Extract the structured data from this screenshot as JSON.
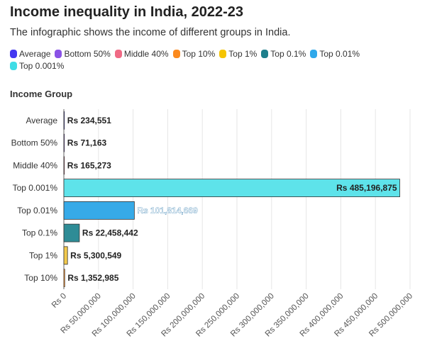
{
  "title": "Income inequality in India, 2022-23",
  "subtitle": "The infographic shows the income of different groups in India.",
  "legend": [
    {
      "label": "Average",
      "color": "#4338f0"
    },
    {
      "label": "Bottom 50%",
      "color": "#8a52e6"
    },
    {
      "label": "Middle 40%",
      "color": "#f06a85"
    },
    {
      "label": "Top 10%",
      "color": "#fb8a1e"
    },
    {
      "label": "Top 1%",
      "color": "#f5c400"
    },
    {
      "label": "Top 0.1%",
      "color": "#1e7f8c"
    },
    {
      "label": "Top 0.01%",
      "color": "#2fa8ea"
    },
    {
      "label": "Top 0.001%",
      "color": "#3fdde6"
    }
  ],
  "chart_data": {
    "type": "bar",
    "orientation": "horizontal",
    "ylabel": "Income Group",
    "xlim": [
      0,
      500000000
    ],
    "x_ticks": [
      0,
      50000000,
      100000000,
      150000000,
      200000000,
      250000000,
      300000000,
      350000000,
      400000000,
      450000000,
      500000000
    ],
    "x_tick_labels": [
      "Rs 0",
      "Rs 50,000,000",
      "Rs 100,000,000",
      "Rs 150,000,000",
      "Rs 200,000,000",
      "Rs 250,000,000",
      "Rs 300,000,000",
      "Rs 350,000,000",
      "Rs 400,000,000",
      "Rs 450,000,000",
      "Rs 500,000,000"
    ],
    "grid": true,
    "legend_position": "top",
    "bars": [
      {
        "category": "Average",
        "value": 234551,
        "label": "Rs 234,551",
        "color": "#4338f0"
      },
      {
        "category": "Bottom 50%",
        "value": 71163,
        "label": "Rs 71,163",
        "color": "#8a52e6"
      },
      {
        "category": "Middle 40%",
        "value": 165273,
        "label": "Rs 165,273",
        "color": "#f06a85"
      },
      {
        "category": "Top 0.001%",
        "value": 485196875,
        "label": "Rs 485,196,875",
        "color": "#5ee3ea"
      },
      {
        "category": "Top 0.01%",
        "value": 101814669,
        "label": "Rs 101,814,669",
        "color": "#36aae8"
      },
      {
        "category": "Top 0.1%",
        "value": 22458442,
        "label": "Rs 22,458,442",
        "color": "#2e8c96"
      },
      {
        "category": "Top 1%",
        "value": 5300549,
        "label": "Rs 5,300,549",
        "color": "#f2c94c"
      },
      {
        "category": "Top 10%",
        "value": 1352985,
        "label": "Rs 1,352,985",
        "color": "#fb8a1e"
      }
    ]
  }
}
